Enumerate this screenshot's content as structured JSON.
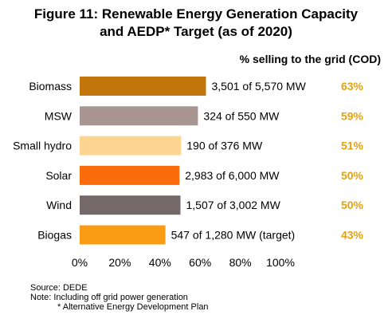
{
  "title_line1": "Figure 11: Renewable Energy Generation Capacity",
  "title_line2": "and AEDP* Target (as of 2020)",
  "share_header": "% selling to the grid (COD)",
  "notes": {
    "source": "Source: DEDE",
    "note": "Note: Including off grid power generation",
    "footnote": "* Alternative Energy Development Plan"
  },
  "colors": {
    "share_text": "#e5a20f",
    "text": "#000000"
  },
  "chart_data": {
    "type": "bar",
    "orientation": "horizontal",
    "title": "Figure 11: Renewable Energy Generation Capacity and AEDP* Target (as of 2020)",
    "categories": [
      "Biomass",
      "MSW",
      "Small hydro",
      "Solar",
      "Wind",
      "Biogas"
    ],
    "values": [
      62.9,
      58.9,
      50.5,
      49.7,
      50.2,
      42.7
    ],
    "bar_colors": [
      "#c1750b",
      "#a89592",
      "#fdd591",
      "#fb6c0c",
      "#74686a",
      "#fa9c13"
    ],
    "bar_labels": [
      "3,501 of 5,570 MW",
      "324 of 550 MW",
      "190 of 376 MW",
      "2,983 of 6,000 MW",
      "1,507 of 3,002 MW",
      "547 of 1,280 MW (target)"
    ],
    "shares": [
      "63%",
      "59%",
      "51%",
      "50%",
      "50%",
      "43%"
    ],
    "xlim": [
      0,
      100
    ],
    "xticks": [
      "0%",
      "20%",
      "40%",
      "60%",
      "80%",
      "100%"
    ],
    "grid": false,
    "legend": "none"
  }
}
